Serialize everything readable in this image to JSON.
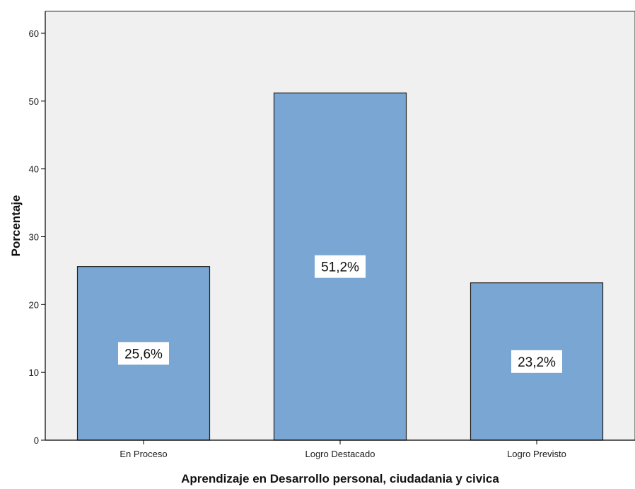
{
  "chart_data": {
    "type": "bar",
    "title": "",
    "xlabel": "Aprendizaje en Desarrollo personal, ciudadania y civica",
    "ylabel": "Porcentaje",
    "categories": [
      "En Proceso",
      "Logro Destacado",
      "Logro Previsto"
    ],
    "values": [
      25.6,
      51.2,
      23.2
    ],
    "data_labels": [
      "25,6%",
      "51,2%",
      "23,2%"
    ],
    "ylim": [
      0,
      60
    ],
    "yticks": [
      0,
      10,
      20,
      30,
      40,
      50,
      60
    ],
    "grid": false,
    "legend": "none",
    "colors": {
      "plot_background": "#f0f0f0",
      "bar_fill": "#79a6d2",
      "bar_stroke": "#1f1f1f",
      "axis": "#000000"
    }
  }
}
